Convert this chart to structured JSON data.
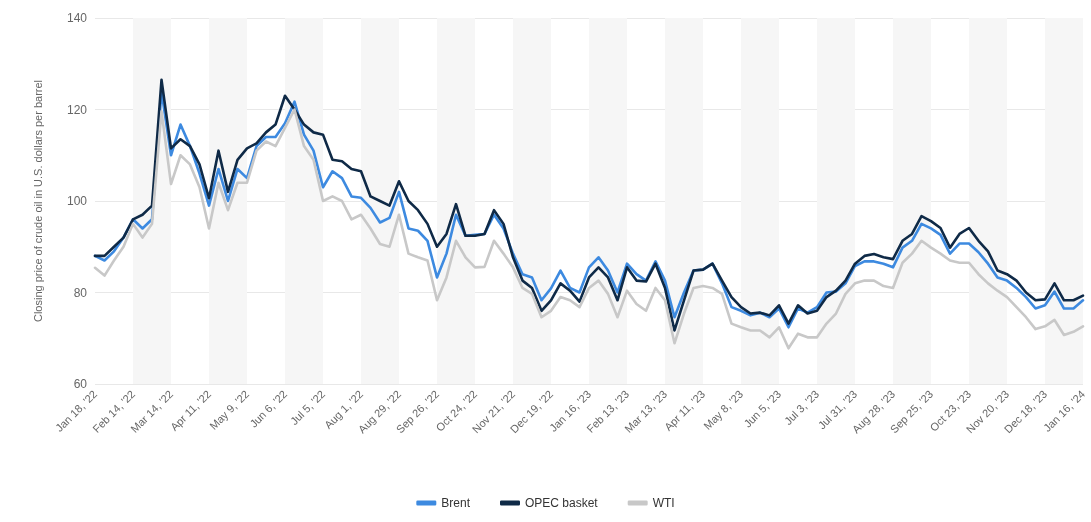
{
  "chart_data": {
    "type": "line",
    "ylabel": "Closing price of crude oil in U.S. dollars per barrel",
    "categories": [
      "Jan 18, '22",
      null,
      null,
      null,
      "Feb 14, '22",
      null,
      null,
      null,
      "Mar 14, '22",
      null,
      null,
      null,
      "Apr 11, '22",
      null,
      null,
      null,
      "May 9, '22",
      null,
      null,
      null,
      "Jun 6, '22",
      null,
      null,
      null,
      "Jul 5, '22",
      null,
      null,
      null,
      "Aug 1, '22",
      null,
      null,
      null,
      "Aug 29, '22",
      null,
      null,
      null,
      "Sep 26, '22",
      null,
      null,
      null,
      "Oct 24, '22",
      null,
      null,
      null,
      "Nov 21, '22",
      null,
      null,
      null,
      "Dec 19, '22",
      null,
      null,
      null,
      "Jan 16, '23",
      null,
      null,
      null,
      "Feb 13, '23",
      null,
      null,
      null,
      "Mar 13, '23",
      null,
      null,
      null,
      "Apr 11, '23",
      null,
      null,
      null,
      "May 8, '23",
      null,
      null,
      null,
      "Jun 5, '23",
      null,
      null,
      null,
      "Jul 3, '23",
      null,
      null,
      null,
      "Jul 31, '23",
      null,
      null,
      null,
      "Aug 28, '23",
      null,
      null,
      null,
      "Sep 25, '23",
      null,
      null,
      null,
      "Oct 23, '23",
      null,
      null,
      null,
      "Nov 20, '23",
      null,
      null,
      null,
      "Dec 18, '23",
      null,
      null,
      null,
      "Jan 16, '24"
    ],
    "series": [
      {
        "name": "Brent",
        "color": "#3d8ae0",
        "values": [
          88,
          87,
          89,
          92,
          96,
          94,
          96,
          124,
          110,
          116.7,
          112,
          106,
          99,
          107,
          100,
          107,
          105,
          112,
          114,
          114,
          117,
          121.7,
          114.5,
          111,
          103,
          106.5,
          105,
          101,
          100.7,
          98.5,
          95.3,
          96.3,
          102,
          94,
          93.5,
          91.3,
          83.3,
          88.5,
          97,
          92.4,
          92.6,
          92.8,
          97,
          94,
          88.5,
          84,
          83.3,
          78.3,
          80.9,
          84.8,
          81,
          80,
          85.5,
          87.7,
          84.8,
          80,
          86.3,
          84,
          82.6,
          86.8,
          82.6,
          74.6,
          80,
          84.8,
          85,
          86.3,
          82,
          76.8,
          76,
          75,
          75.6,
          74.6,
          76.5,
          72.4,
          76.5,
          75.6,
          76.8,
          80,
          80.2,
          82,
          85.8,
          86.8,
          86.8,
          86.3,
          85.5,
          89.8,
          91.3,
          95,
          94,
          92.6,
          88.5,
          90.7,
          90.7,
          88.8,
          86.3,
          83.3,
          82.6,
          81,
          79,
          76.5,
          77.2,
          80.2,
          76.5,
          76.5,
          78.3
        ]
      },
      {
        "name": "OPEC basket",
        "color": "#0f2a47",
        "values": [
          88,
          88,
          90,
          92,
          96,
          97,
          99,
          126.5,
          111.5,
          113.5,
          112,
          108,
          100.6,
          111,
          102,
          109,
          111.5,
          112.6,
          115,
          116.7,
          123,
          120,
          116.7,
          115,
          114.5,
          109,
          108.7,
          107,
          106.5,
          101,
          100,
          99,
          104.3,
          100,
          98,
          95,
          90,
          92.8,
          99.3,
          92.4,
          92.4,
          92.8,
          98,
          95,
          87.7,
          82.6,
          81,
          76,
          78.3,
          82,
          80.4,
          78,
          83.3,
          85.5,
          83.3,
          78.3,
          85.5,
          82.6,
          82.4,
          86.3,
          81,
          71.7,
          78.3,
          84.8,
          85,
          86.3,
          82.6,
          79,
          76.8,
          75.4,
          75.6,
          75,
          77.2,
          73.2,
          77.2,
          75.4,
          76,
          79,
          80.4,
          82.6,
          86.3,
          88,
          88.4,
          87.7,
          87.3,
          91.3,
          92.8,
          96.7,
          95.6,
          94.1,
          89.8,
          92.8,
          94.1,
          91.3,
          89,
          84.8,
          84,
          82.6,
          80,
          78.3,
          78.5,
          82,
          78.3,
          78.3,
          79.3
        ]
      },
      {
        "name": "WTI",
        "color": "#c8c8c8",
        "values": [
          85.4,
          83.7,
          87,
          90,
          95,
          92,
          95,
          119.6,
          103.7,
          110,
          108,
          103,
          94,
          104,
          98,
          104,
          104,
          111,
          113,
          112,
          116,
          120,
          112,
          109,
          100,
          101,
          100,
          96,
          97,
          94,
          90.6,
          90,
          97,
          88.5,
          87.7,
          87,
          78.3,
          83.3,
          91.3,
          87.7,
          85.5,
          85.6,
          91.3,
          88.5,
          85.5,
          81,
          79.7,
          74.6,
          76,
          79,
          78.3,
          76.8,
          81,
          82.6,
          79.7,
          74.6,
          80.4,
          77.5,
          76,
          81,
          78.3,
          68.9,
          75.4,
          81,
          81.4,
          81,
          79.7,
          73.2,
          72.4,
          71.7,
          71.7,
          70.2,
          72.4,
          67.8,
          71,
          70.2,
          70.2,
          73.2,
          75.4,
          79.7,
          82,
          82.6,
          82.6,
          81.4,
          81,
          86.5,
          88.5,
          91.3,
          89.8,
          88.5,
          87,
          86.5,
          86.5,
          84,
          82,
          80.4,
          79,
          76.8,
          74.6,
          72,
          72.6,
          74,
          70.7,
          71.4,
          72.6
        ]
      }
    ],
    "ylim": [
      60,
      140
    ],
    "yticks": [
      60,
      80,
      100,
      120,
      140
    ],
    "grid": "y",
    "legend": "bottom",
    "marker": "none",
    "line_style": "solid"
  }
}
